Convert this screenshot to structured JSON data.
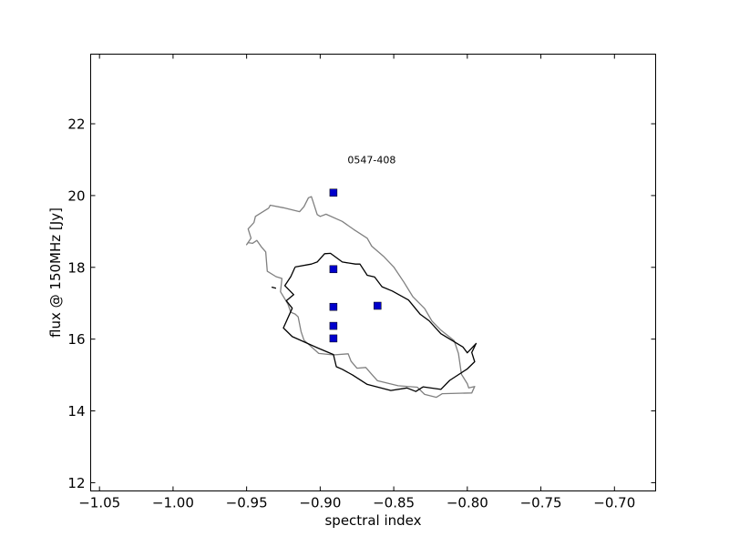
{
  "chart_data": {
    "type": "scatter",
    "title": "",
    "xlabel": "spectral index",
    "ylabel": "flux @ 150MHz [Jy]",
    "xlim": [
      -1.056,
      -0.672
    ],
    "ylim": [
      11.77,
      23.94
    ],
    "grid": false,
    "x_ticks": [
      -1.05,
      -1.0,
      -0.95,
      -0.9,
      -0.85,
      -0.8,
      -0.75,
      -0.7
    ],
    "x_tick_labels": [
      "−1.05",
      "−1.00",
      "−0.95",
      "−0.90",
      "−0.85",
      "−0.80",
      "−0.75",
      "−0.70"
    ],
    "y_ticks": [
      12,
      14,
      16,
      18,
      20,
      22
    ],
    "y_tick_labels": [
      "12",
      "14",
      "16",
      "18",
      "20",
      "22"
    ],
    "annotation": {
      "text": "0547-408",
      "x": -0.865,
      "y": 20.9
    },
    "marker_color": "#0000cc",
    "series": [
      {
        "name": "points",
        "marker": "square",
        "points": [
          {
            "x": -0.891,
            "y": 20.08
          },
          {
            "x": -0.891,
            "y": 17.95
          },
          {
            "x": -0.891,
            "y": 16.9
          },
          {
            "x": -0.891,
            "y": 16.37
          },
          {
            "x": -0.891,
            "y": 16.02
          },
          {
            "x": -0.861,
            "y": 16.93
          }
        ]
      }
    ],
    "contours": [
      {
        "name": "outer-contour",
        "color": "#808080",
        "points": [
          [
            -0.935,
            19.65
          ],
          [
            -0.934,
            19.73
          ],
          [
            -0.925,
            19.66
          ],
          [
            -0.914,
            19.55
          ],
          [
            -0.911,
            19.69
          ],
          [
            -0.908,
            19.94
          ],
          [
            -0.906,
            19.97
          ],
          [
            -0.905,
            19.85
          ],
          [
            -0.902,
            19.47
          ],
          [
            -0.9,
            19.42
          ],
          [
            -0.896,
            19.48
          ],
          [
            -0.885,
            19.28
          ],
          [
            -0.877,
            19.05
          ],
          [
            -0.868,
            18.81
          ],
          [
            -0.865,
            18.59
          ],
          [
            -0.857,
            18.31
          ],
          [
            -0.85,
            18.01
          ],
          [
            -0.843,
            17.58
          ],
          [
            -0.837,
            17.18
          ],
          [
            -0.829,
            16.85
          ],
          [
            -0.824,
            16.5
          ],
          [
            -0.818,
            16.25
          ],
          [
            -0.809,
            15.96
          ],
          [
            -0.806,
            15.6
          ],
          [
            -0.804,
            15.02
          ],
          [
            -0.8,
            14.76
          ],
          [
            -0.799,
            14.64
          ],
          [
            -0.795,
            14.68
          ],
          [
            -0.797,
            14.5
          ],
          [
            -0.817,
            14.48
          ],
          [
            -0.821,
            14.38
          ],
          [
            -0.829,
            14.46
          ],
          [
            -0.834,
            14.66
          ],
          [
            -0.847,
            14.7
          ],
          [
            -0.861,
            14.84
          ],
          [
            -0.865,
            15.02
          ],
          [
            -0.869,
            15.21
          ],
          [
            -0.875,
            15.19
          ],
          [
            -0.879,
            15.38
          ],
          [
            -0.881,
            15.59
          ],
          [
            -0.891,
            15.56
          ],
          [
            -0.901,
            15.6
          ],
          [
            -0.911,
            15.97
          ],
          [
            -0.913,
            16.21
          ],
          [
            -0.915,
            16.62
          ],
          [
            -0.917,
            16.7
          ],
          [
            -0.92,
            16.75
          ],
          [
            -0.922,
            16.98
          ],
          [
            -0.927,
            17.32
          ],
          [
            -0.926,
            17.69
          ],
          [
            -0.93,
            17.74
          ],
          [
            -0.936,
            17.89
          ],
          [
            -0.937,
            18.43
          ],
          [
            -0.94,
            18.57
          ],
          [
            -0.943,
            18.75
          ],
          [
            -0.946,
            18.67
          ],
          [
            -0.949,
            18.69
          ],
          [
            -0.95,
            18.63
          ],
          [
            -0.947,
            18.81
          ],
          [
            -0.949,
            19.07
          ],
          [
            -0.945,
            19.25
          ],
          [
            -0.944,
            19.42
          ],
          [
            -0.935,
            19.65
          ]
        ]
      },
      {
        "name": "inner-contour",
        "color": "#000000",
        "points": [
          [
            -0.917,
            18.01
          ],
          [
            -0.906,
            18.09
          ],
          [
            -0.902,
            18.15
          ],
          [
            -0.897,
            18.38
          ],
          [
            -0.893,
            18.39
          ],
          [
            -0.885,
            18.15
          ],
          [
            -0.876,
            18.09
          ],
          [
            -0.873,
            18.09
          ],
          [
            -0.868,
            17.78
          ],
          [
            -0.863,
            17.73
          ],
          [
            -0.858,
            17.46
          ],
          [
            -0.851,
            17.34
          ],
          [
            -0.84,
            17.09
          ],
          [
            -0.832,
            16.69
          ],
          [
            -0.826,
            16.51
          ],
          [
            -0.818,
            16.15
          ],
          [
            -0.803,
            15.78
          ],
          [
            -0.8,
            15.62
          ],
          [
            -0.794,
            15.88
          ],
          [
            -0.797,
            15.63
          ],
          [
            -0.795,
            15.37
          ],
          [
            -0.8,
            15.17
          ],
          [
            -0.812,
            14.85
          ],
          [
            -0.818,
            14.6
          ],
          [
            -0.83,
            14.67
          ],
          [
            -0.835,
            14.54
          ],
          [
            -0.841,
            14.64
          ],
          [
            -0.852,
            14.57
          ],
          [
            -0.868,
            14.74
          ],
          [
            -0.878,
            15.0
          ],
          [
            -0.885,
            15.16
          ],
          [
            -0.889,
            15.23
          ],
          [
            -0.891,
            15.57
          ],
          [
            -0.902,
            15.76
          ],
          [
            -0.919,
            16.07
          ],
          [
            -0.925,
            16.31
          ],
          [
            -0.919,
            16.86
          ],
          [
            -0.923,
            17.07
          ],
          [
            -0.918,
            17.24
          ],
          [
            -0.924,
            17.49
          ],
          [
            -0.92,
            17.74
          ],
          [
            -0.917,
            18.01
          ]
        ]
      },
      {
        "name": "small-dash",
        "color": "#000000",
        "points": [
          [
            -0.933,
            17.45
          ],
          [
            -0.93,
            17.42
          ]
        ]
      }
    ]
  }
}
